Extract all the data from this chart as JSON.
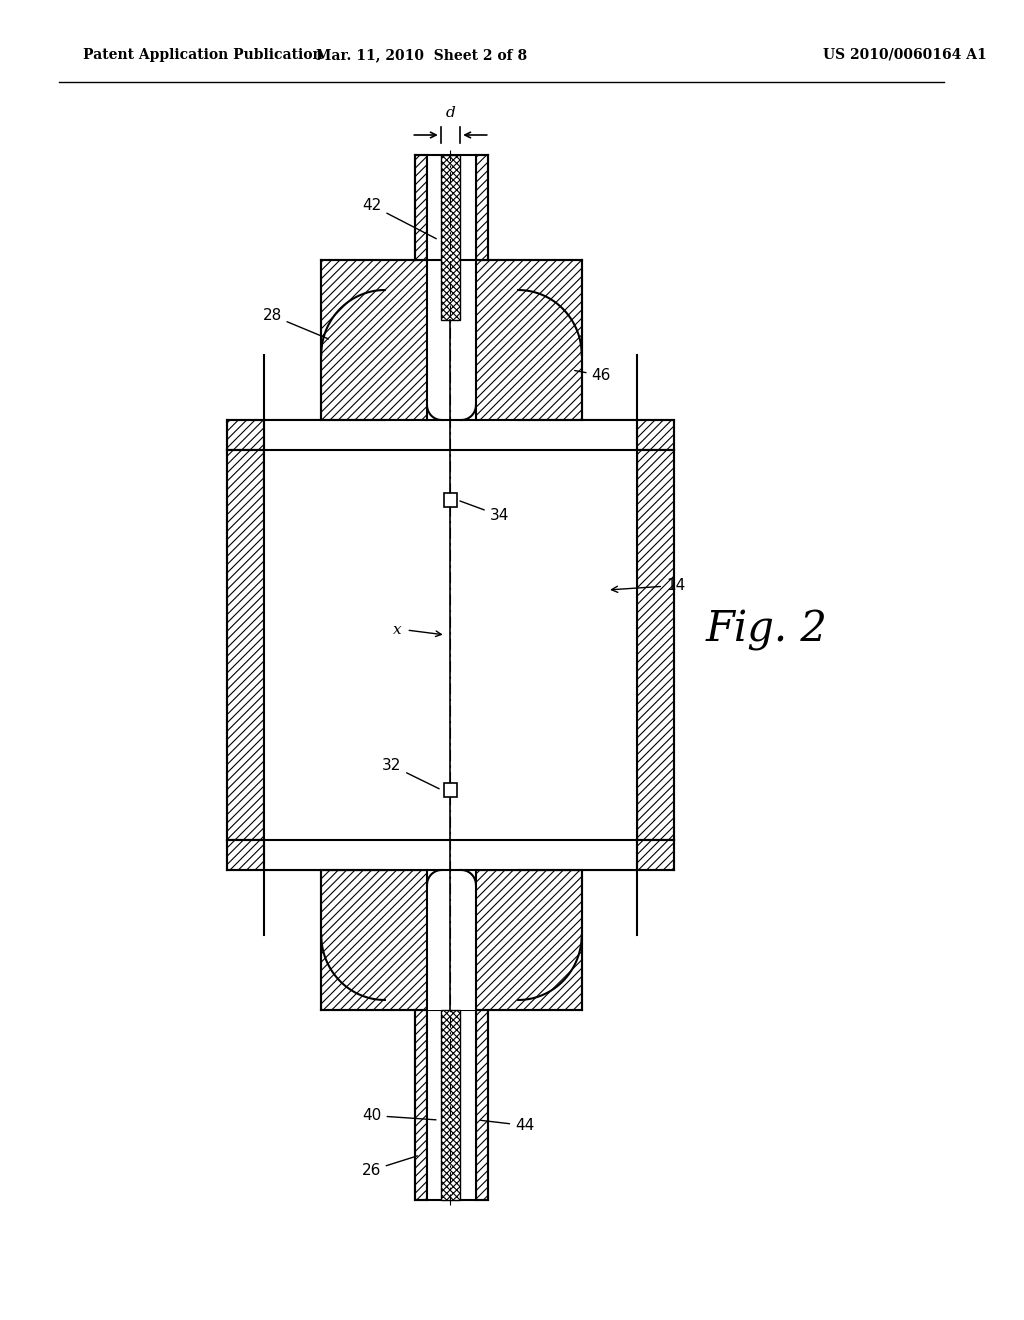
{
  "title_left": "Patent Application Publication",
  "title_mid": "Mar. 11, 2010  Sheet 2 of 8",
  "title_right": "US 2010/0060164 A1",
  "fig_label": "Fig. 2",
  "bg_color": "#ffffff"
}
